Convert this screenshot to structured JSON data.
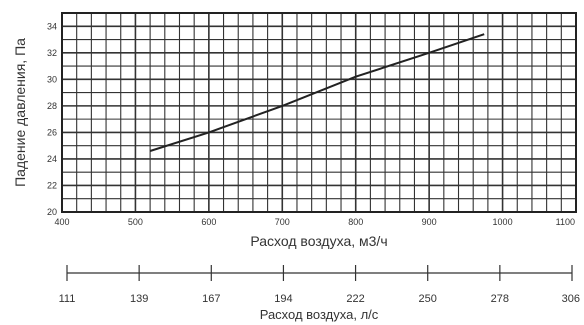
{
  "chart_data": {
    "type": "line",
    "title": "",
    "xlabel": "Расход воздуха, м3/ч",
    "ylabel": "Падение давления, Па",
    "secondary_xlabel": "Расход воздуха, л/с",
    "xlim": [
      400,
      1100
    ],
    "ylim": [
      20,
      35
    ],
    "x_ticks": [
      400,
      500,
      600,
      700,
      800,
      900,
      1000,
      1100
    ],
    "y_ticks": [
      20,
      22,
      24,
      26,
      28,
      30,
      32,
      34
    ],
    "secondary_x_ticks": [
      111,
      139,
      167,
      194,
      222,
      250,
      278,
      306
    ],
    "grid": true,
    "series": [
      {
        "x": [
          520,
          600,
          700,
          800,
          900,
          975
        ],
        "y": [
          24.6,
          26.0,
          28.0,
          30.2,
          32.0,
          33.4
        ]
      }
    ],
    "colors": {
      "line": "#222222",
      "grid": "#333333",
      "plot_bg": "#ffffff"
    }
  }
}
